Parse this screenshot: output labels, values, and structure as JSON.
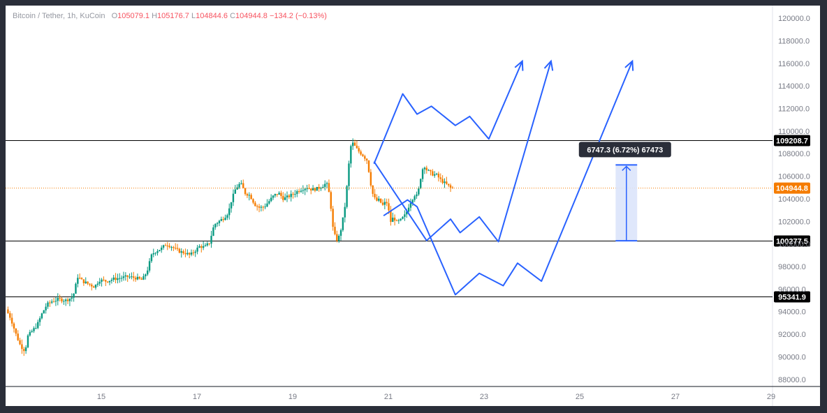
{
  "header": {
    "symbol": "Bitcoin / Tether, 1h, KuCoin",
    "open_label": "O",
    "open": "105079.1",
    "high_label": "H",
    "high": "105176.7",
    "low_label": "L",
    "low": "104844.6",
    "close_label": "C",
    "close": "104944.8",
    "change": "−134.2 (−0.13%)"
  },
  "measure_tooltip": "6747.3 (6.72%) 67473",
  "colors": {
    "up": "#089981",
    "down": "#f57c00",
    "projection": "#2962ff",
    "measure_fill": "#dbe4fb",
    "level_line": "#000000",
    "current_price": "#f57c00"
  },
  "chart_data": {
    "type": "candlestick",
    "title": "Bitcoin / Tether, 1h, KuCoin",
    "y_ticks": [
      "120000.0",
      "118000.0",
      "116000.0",
      "114000.0",
      "112000.0",
      "110000.0",
      "108000.0",
      "106000.0",
      "104000.0",
      "102000.0",
      "100000.0",
      "98000.0",
      "96000.0",
      "94000.0",
      "92000.0",
      "90000.0",
      "88000.0"
    ],
    "ylim": [
      87000,
      120500
    ],
    "x_ticks": [
      {
        "day": 15,
        "label": "15"
      },
      {
        "day": 17,
        "label": "17"
      },
      {
        "day": 19,
        "label": "19"
      },
      {
        "day": 21,
        "label": "21"
      },
      {
        "day": 23,
        "label": "23"
      },
      {
        "day": 25,
        "label": "25"
      },
      {
        "day": 27,
        "label": "27"
      },
      {
        "day": 29,
        "label": "29"
      }
    ],
    "xlim": [
      13.0,
      29.0
    ],
    "horizontal_levels": [
      {
        "price": 109208.7,
        "label": "109208.7"
      },
      {
        "price": 100277.5,
        "label": "100277.5"
      },
      {
        "price": 95341.9,
        "label": "95341.9"
      }
    ],
    "current_price": {
      "price": 104944.8,
      "label": "104944.8"
    },
    "price_path": [
      [
        13.05,
        94200
      ],
      [
        13.15,
        93400
      ],
      [
        13.25,
        92100
      ],
      [
        13.35,
        91000
      ],
      [
        13.45,
        90500
      ],
      [
        13.5,
        91800
      ],
      [
        13.6,
        92300
      ],
      [
        13.7,
        92800
      ],
      [
        13.8,
        93800
      ],
      [
        13.9,
        94600
      ],
      [
        14.0,
        94900
      ],
      [
        14.15,
        95100
      ],
      [
        14.3,
        95000
      ],
      [
        14.45,
        95300
      ],
      [
        14.55,
        97100
      ],
      [
        14.65,
        96700
      ],
      [
        14.75,
        96500
      ],
      [
        14.9,
        96200
      ],
      [
        15.0,
        96800
      ],
      [
        15.15,
        96700
      ],
      [
        15.3,
        96900
      ],
      [
        15.45,
        97000
      ],
      [
        15.6,
        97100
      ],
      [
        15.75,
        97000
      ],
      [
        15.9,
        96800
      ],
      [
        16.0,
        97600
      ],
      [
        16.1,
        99100
      ],
      [
        16.2,
        99400
      ],
      [
        16.3,
        99600
      ],
      [
        16.4,
        100000
      ],
      [
        16.5,
        99800
      ],
      [
        16.6,
        99500
      ],
      [
        16.7,
        99300
      ],
      [
        16.8,
        99200
      ],
      [
        16.9,
        99000
      ],
      [
        17.0,
        99400
      ],
      [
        17.1,
        99800
      ],
      [
        17.2,
        99700
      ],
      [
        17.3,
        100100
      ],
      [
        17.4,
        101700
      ],
      [
        17.5,
        102000
      ],
      [
        17.6,
        102300
      ],
      [
        17.7,
        102800
      ],
      [
        17.75,
        103700
      ],
      [
        17.85,
        104900
      ],
      [
        17.95,
        105400
      ],
      [
        18.05,
        104500
      ],
      [
        18.15,
        104300
      ],
      [
        18.25,
        103500
      ],
      [
        18.35,
        103200
      ],
      [
        18.45,
        103300
      ],
      [
        18.55,
        103800
      ],
      [
        18.65,
        104300
      ],
      [
        18.75,
        104500
      ],
      [
        18.85,
        104000
      ],
      [
        18.95,
        104200
      ],
      [
        19.05,
        104400
      ],
      [
        19.15,
        104700
      ],
      [
        19.25,
        104900
      ],
      [
        19.35,
        105000
      ],
      [
        19.45,
        104800
      ],
      [
        19.55,
        104900
      ],
      [
        19.65,
        105100
      ],
      [
        19.75,
        105400
      ],
      [
        19.82,
        104200
      ],
      [
        19.88,
        101500
      ],
      [
        19.95,
        100300
      ],
      [
        20.0,
        100500
      ],
      [
        20.05,
        101300
      ],
      [
        20.1,
        102400
      ],
      [
        20.15,
        103800
      ],
      [
        20.2,
        106300
      ],
      [
        20.25,
        108600
      ],
      [
        20.3,
        108900
      ],
      [
        20.4,
        108300
      ],
      [
        20.5,
        107900
      ],
      [
        20.6,
        107400
      ],
      [
        20.65,
        106000
      ],
      [
        20.7,
        104600
      ],
      [
        20.78,
        103800
      ],
      [
        20.85,
        103900
      ],
      [
        20.92,
        103400
      ],
      [
        21.0,
        103800
      ],
      [
        21.05,
        102900
      ],
      [
        21.1,
        101800
      ],
      [
        21.15,
        102500
      ],
      [
        21.2,
        101900
      ],
      [
        21.3,
        102100
      ],
      [
        21.4,
        102600
      ],
      [
        21.5,
        103700
      ],
      [
        21.6,
        104400
      ],
      [
        21.65,
        104200
      ],
      [
        21.7,
        105500
      ],
      [
        21.75,
        106600
      ],
      [
        21.8,
        106900
      ],
      [
        21.85,
        106500
      ],
      [
        21.9,
        106400
      ],
      [
        21.95,
        106200
      ],
      [
        22.05,
        106100
      ],
      [
        22.15,
        105600
      ],
      [
        22.25,
        105300
      ],
      [
        22.35,
        104944.8
      ]
    ],
    "projection_paths": [
      [
        [
          20.7,
          107100
        ],
        [
          21.3,
          113300
        ],
        [
          21.6,
          111500
        ],
        [
          21.9,
          112200
        ],
        [
          22.4,
          110500
        ],
        [
          22.7,
          111300
        ],
        [
          23.1,
          109300
        ],
        [
          23.8,
          116200
        ]
      ],
      [
        [
          20.7,
          107300
        ],
        [
          21.8,
          100300
        ],
        [
          22.3,
          102200
        ],
        [
          22.5,
          101000
        ],
        [
          22.9,
          102400
        ],
        [
          23.3,
          100200
        ],
        [
          24.4,
          116200
        ]
      ],
      [
        [
          20.9,
          102500
        ],
        [
          21.4,
          103900
        ],
        [
          21.6,
          103300
        ],
        [
          22.4,
          95500
        ],
        [
          22.9,
          97400
        ],
        [
          23.4,
          96300
        ],
        [
          23.7,
          98300
        ],
        [
          24.2,
          96700
        ],
        [
          26.1,
          116200
        ]
      ]
    ],
    "measure": {
      "x_start": 25.75,
      "x_end": 26.2,
      "from": 100277.5,
      "to": 107000,
      "delta": "6747.3",
      "percent": "6.72%",
      "ticks": "67473"
    }
  }
}
